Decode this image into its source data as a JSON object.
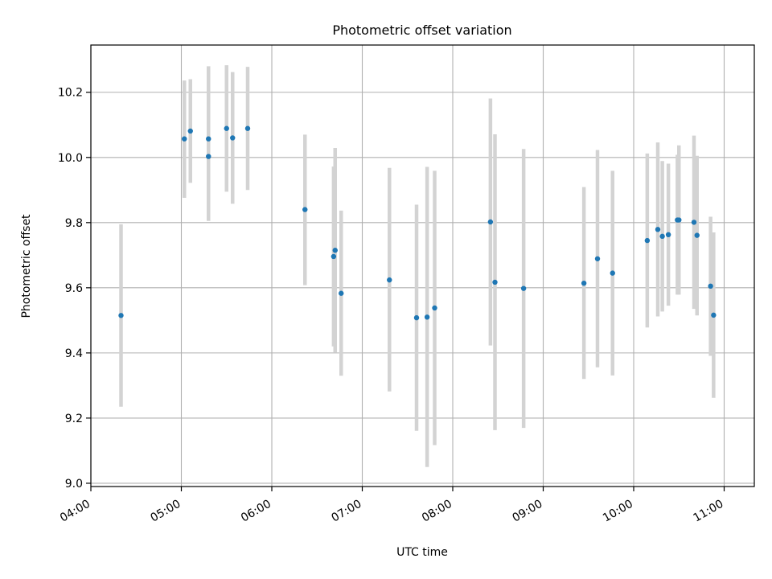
{
  "chart_data": {
    "type": "scatter",
    "title": "Photometric offset variation",
    "xlabel": "UTC time",
    "ylabel": "Photometric offset",
    "xlim": [
      "04:00",
      "11:20"
    ],
    "ylim": [
      8.99,
      10.345
    ],
    "grid": true,
    "colors": {
      "point": "#1f77b4",
      "errorbar": "#d3d3d3",
      "grid": "#b0b0b0"
    },
    "x_ticks": [
      "04:00",
      "05:00",
      "06:00",
      "07:00",
      "08:00",
      "09:00",
      "10:00",
      "11:00"
    ],
    "y_ticks": [
      "9.0",
      "9.2",
      "9.4",
      "9.6",
      "9.8",
      "10.0",
      "10.2"
    ],
    "points": [
      {
        "x": "04:20",
        "y": 9.515,
        "low": 9.235,
        "high": 9.795
      },
      {
        "x": "05:02",
        "y": 10.057,
        "low": 9.876,
        "high": 10.236
      },
      {
        "x": "05:06",
        "y": 10.081,
        "low": 9.922,
        "high": 10.24
      },
      {
        "x": "05:18",
        "y": 10.057,
        "low": 9.834,
        "high": 10.28
      },
      {
        "x": "05:18",
        "y": 10.003,
        "low": 9.805,
        "high": 10.2
      },
      {
        "x": "05:30",
        "y": 10.089,
        "low": 9.895,
        "high": 10.283
      },
      {
        "x": "05:34",
        "y": 10.06,
        "low": 9.858,
        "high": 10.262
      },
      {
        "x": "05:44",
        "y": 10.089,
        "low": 9.9,
        "high": 10.278
      },
      {
        "x": "06:22",
        "y": 9.84,
        "low": 9.608,
        "high": 10.07
      },
      {
        "x": "06:41",
        "y": 9.696,
        "low": 9.42,
        "high": 9.972
      },
      {
        "x": "06:42",
        "y": 9.715,
        "low": 9.402,
        "high": 10.029
      },
      {
        "x": "06:46",
        "y": 9.583,
        "low": 9.33,
        "high": 9.837
      },
      {
        "x": "07:18",
        "y": 9.624,
        "low": 9.282,
        "high": 9.968
      },
      {
        "x": "07:36",
        "y": 9.508,
        "low": 9.161,
        "high": 9.855
      },
      {
        "x": "07:43",
        "y": 9.51,
        "low": 9.05,
        "high": 9.971
      },
      {
        "x": "07:48",
        "y": 9.538,
        "low": 9.117,
        "high": 9.959
      },
      {
        "x": "08:25",
        "y": 9.802,
        "low": 9.423,
        "high": 10.181
      },
      {
        "x": "08:28",
        "y": 9.617,
        "low": 9.163,
        "high": 10.071
      },
      {
        "x": "08:47",
        "y": 9.598,
        "low": 9.17,
        "high": 10.026
      },
      {
        "x": "09:27",
        "y": 9.614,
        "low": 9.32,
        "high": 9.909
      },
      {
        "x": "09:36",
        "y": 9.689,
        "low": 9.356,
        "high": 10.023
      },
      {
        "x": "09:46",
        "y": 9.645,
        "low": 9.331,
        "high": 9.959
      },
      {
        "x": "10:09",
        "y": 9.745,
        "low": 9.478,
        "high": 10.012
      },
      {
        "x": "10:16",
        "y": 9.779,
        "low": 9.512,
        "high": 10.046
      },
      {
        "x": "10:19",
        "y": 9.758,
        "low": 9.527,
        "high": 9.989
      },
      {
        "x": "10:23",
        "y": 9.763,
        "low": 9.545,
        "high": 9.981
      },
      {
        "x": "10:29",
        "y": 9.808,
        "low": 9.579,
        "high": 10.008
      },
      {
        "x": "10:30",
        "y": 9.808,
        "low": 9.579,
        "high": 10.037
      },
      {
        "x": "10:40",
        "y": 9.801,
        "low": 9.535,
        "high": 10.067
      },
      {
        "x": "10:42",
        "y": 9.761,
        "low": 9.515,
        "high": 10.005
      },
      {
        "x": "10:51",
        "y": 9.605,
        "low": 9.391,
        "high": 9.818
      },
      {
        "x": "10:53",
        "y": 9.516,
        "low": 9.262,
        "high": 9.77
      }
    ]
  }
}
